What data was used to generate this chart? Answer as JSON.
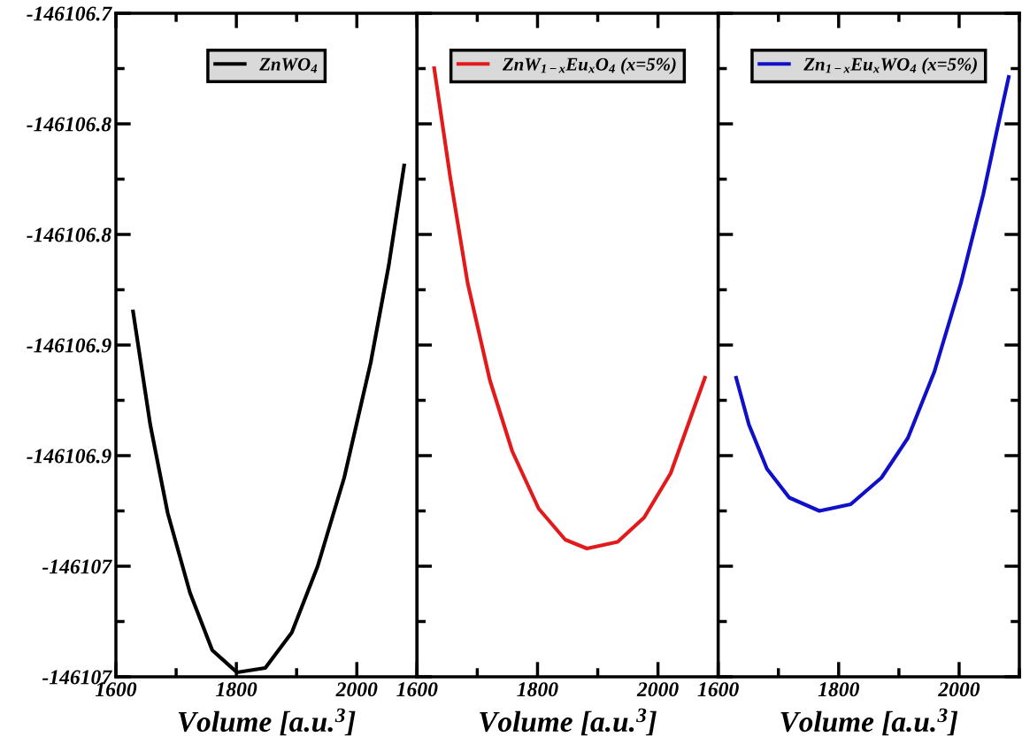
{
  "chart_data": [
    {
      "type": "line",
      "xlabel": "Volume [a.u.$^{3}$]",
      "xlim": [
        1600,
        2100
      ],
      "xticks": [
        1600,
        1800,
        2000
      ],
      "ylim": [
        -146107.0,
        -146106.7
      ],
      "yticks": [
        {
          "value": -146107.0,
          "label": "-146107"
        },
        {
          "value": -146106.95,
          "label": "-146107"
        },
        {
          "value": -146106.9,
          "label": "-146106.9"
        },
        {
          "value": -146106.85,
          "label": "-146106.9"
        },
        {
          "value": -146106.8,
          "label": "-146106.8"
        },
        {
          "value": -146106.75,
          "label": "-146106.8"
        },
        {
          "value": -146106.7,
          "label": "-146106.7"
        }
      ],
      "legend": "top",
      "grid": false,
      "series": [
        {
          "name": "ZnWO$_{4}$",
          "color": "#000000",
          "x": [
            1628,
            1657,
            1686,
            1723,
            1760,
            1801,
            1848,
            1892,
            1935,
            1979,
            2023,
            2053,
            2079
          ],
          "values": [
            -146106.834,
            -146106.886,
            -146106.926,
            -146106.962,
            -146106.988,
            -146106.998,
            -146106.996,
            -146106.98,
            -146106.95,
            -146106.91,
            -146106.858,
            -146106.814,
            -146106.768
          ]
        }
      ]
    },
    {
      "type": "line",
      "xlabel": "Volume [a.u.$^{3}$]",
      "xlim": [
        1600,
        2100
      ],
      "xticks": [
        1600,
        1800,
        2000
      ],
      "ylim": [
        -146107.0,
        -146106.7
      ],
      "yticks": [
        {
          "value": -146107.0,
          "label": null
        },
        {
          "value": -146106.95,
          "label": null
        },
        {
          "value": -146106.9,
          "label": null
        },
        {
          "value": -146106.85,
          "label": null
        },
        {
          "value": -146106.8,
          "label": null
        },
        {
          "value": -146106.75,
          "label": null
        },
        {
          "value": -146106.7,
          "label": null
        }
      ],
      "tick_labels": "x",
      "legend": "top",
      "grid": false,
      "series": [
        {
          "name": "ZnW$_{1−x}$Eu$_{x}$O$_{4}$ (x=5%)",
          "color": "#e31a1c",
          "x": [
            1628,
            1655,
            1684,
            1721,
            1758,
            1802,
            1846,
            1882,
            1933,
            1977,
            2021,
            2050,
            2079
          ],
          "values": [
            -146106.724,
            -146106.774,
            -146106.822,
            -146106.866,
            -146106.898,
            -146106.924,
            -146106.938,
            -146106.942,
            -146106.939,
            -146106.928,
            -146106.908,
            -146106.886,
            -146106.864
          ]
        }
      ]
    },
    {
      "type": "line",
      "xlabel": "Volume [a.u.$^{3}$]",
      "xlim": [
        1600,
        2100
      ],
      "xticks": [
        1600,
        1800,
        2000
      ],
      "ylim": [
        -146107.0,
        -146106.7
      ],
      "yticks": [
        {
          "value": -146107.0,
          "label": null
        },
        {
          "value": -146106.95,
          "label": null
        },
        {
          "value": -146106.9,
          "label": null
        },
        {
          "value": -146106.85,
          "label": null
        },
        {
          "value": -146106.8,
          "label": null
        },
        {
          "value": -146106.75,
          "label": null
        },
        {
          "value": -146106.7,
          "label": null
        }
      ],
      "tick_labels": "x",
      "legend": "top",
      "grid": false,
      "series": [
        {
          "name": "Zn$_{1−x}$Eu$_{x}$WO$_{4}$ (x=5%)",
          "color": "#1010c8",
          "x": [
            1629,
            1651,
            1681,
            1718,
            1768,
            1820,
            1871,
            1915,
            1959,
            2003,
            2040,
            2062,
            2083
          ],
          "values": [
            -146106.864,
            -146106.886,
            -146106.906,
            -146106.919,
            -146106.925,
            -146106.922,
            -146106.91,
            -146106.892,
            -146106.862,
            -146106.822,
            -146106.782,
            -146106.754,
            -146106.728
          ]
        }
      ]
    }
  ]
}
